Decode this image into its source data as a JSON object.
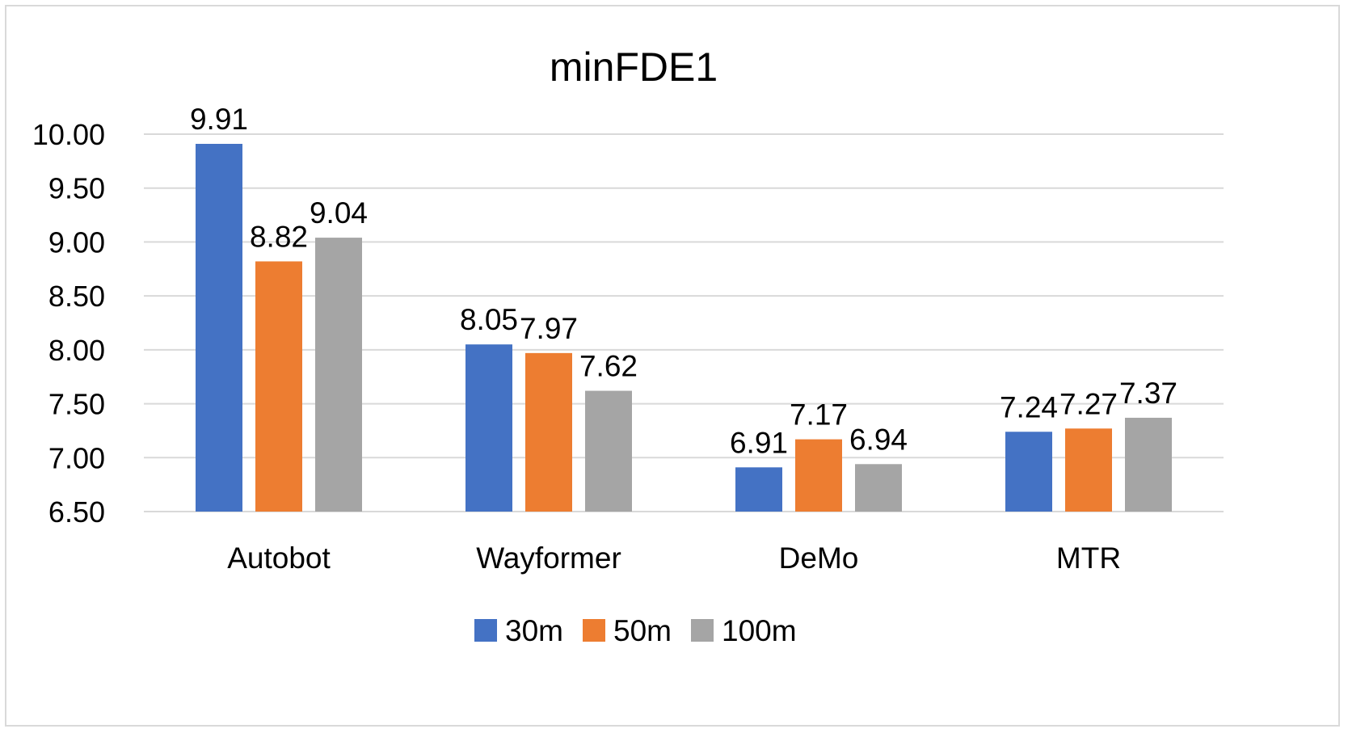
{
  "chart_data": {
    "type": "bar",
    "title": "minFDE1",
    "xlabel": "",
    "ylabel": "",
    "categories": [
      "Autobot",
      "Wayformer",
      "DeMo",
      "MTR"
    ],
    "series": [
      {
        "name": "30m",
        "color": "#4472c4",
        "values": [
          9.91,
          8.05,
          6.91,
          7.24
        ],
        "labels": [
          "9.91",
          "8.05",
          "6.91",
          "7.24"
        ]
      },
      {
        "name": "50m",
        "color": "#ed7d31",
        "values": [
          8.82,
          7.97,
          7.17,
          7.27
        ],
        "labels": [
          "8.82",
          "7.97",
          "7.17",
          "7.27"
        ]
      },
      {
        "name": "100m",
        "color": "#a5a5a5",
        "values": [
          9.04,
          7.62,
          6.94,
          7.37
        ],
        "labels": [
          "9.04",
          "7.62",
          "6.94",
          "7.37"
        ]
      }
    ],
    "ylim": [
      6.5,
      10.0
    ],
    "yticks": [
      "6.50",
      "7.00",
      "7.50",
      "8.00",
      "8.50",
      "9.00",
      "9.50",
      "10.00"
    ],
    "grid": true,
    "gridline_color": "#d9d9d9",
    "legend_position": "bottom"
  }
}
